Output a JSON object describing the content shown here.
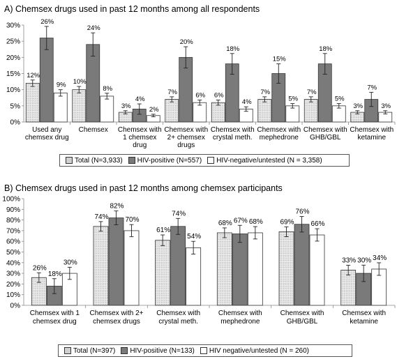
{
  "chart_data": [
    {
      "type": "bar",
      "title": "A) Chemsex drugs used in past 12 months among all respondents",
      "categories": [
        [
          "Used any",
          "chemsex drug"
        ],
        [
          "Chemsex"
        ],
        [
          "Chemsex with",
          "1 chemsex",
          "drug"
        ],
        [
          "Chemsex with",
          "2+ chemsex",
          "drugs"
        ],
        [
          "Chemsex with",
          "crystal meth."
        ],
        [
          "Chemsex with",
          "mephedrone"
        ],
        [
          "Chemsex with",
          "GHB/GBL"
        ],
        [
          "Chemsex with",
          "ketamine"
        ]
      ],
      "ylim": [
        0,
        30
      ],
      "yticks": [
        "0%",
        "5%",
        "10%",
        "15%",
        "20%",
        "25%",
        "30%"
      ],
      "series": [
        {
          "name": "Total (N=3,933)",
          "values": [
            12,
            10,
            3,
            7,
            6,
            7,
            7,
            3
          ],
          "labels": [
            "12%",
            "10%",
            "3%",
            "7%",
            "6%",
            "7%",
            "7%",
            "3%"
          ],
          "errors": [
            1,
            1,
            0.5,
            0.8,
            0.8,
            0.8,
            0.8,
            0.5
          ]
        },
        {
          "name": "HIV-positive (N=557)",
          "values": [
            26,
            24,
            4,
            20,
            18,
            15,
            18,
            7
          ],
          "labels": [
            "26%",
            "24%",
            "4%",
            "20%",
            "18%",
            "15%",
            "18%",
            "7%"
          ],
          "errors": [
            3.6,
            3.6,
            1.6,
            3.3,
            3.2,
            3,
            3.2,
            2.2
          ]
        },
        {
          "name": "HIV-negative/untested (N = 3,358)",
          "values": [
            9,
            8,
            2,
            6,
            4,
            5,
            5,
            3
          ],
          "labels": [
            "9%",
            "8%",
            "2%",
            "6%",
            "4%",
            "5%",
            "5%",
            "3%"
          ],
          "errors": [
            1,
            0.9,
            0.4,
            0.8,
            0.7,
            0.7,
            0.7,
            0.5
          ]
        }
      ],
      "grid": false,
      "legend": "bottom"
    },
    {
      "type": "bar",
      "title": "B) Chemsex drugs used in past 12 months among chemsex participants",
      "categories": [
        [
          "Chemsex with 1",
          "chemsex drug"
        ],
        [
          "Chemsex with 2+",
          "chemsex drugs"
        ],
        [
          "Chemsex with",
          "crystal meth."
        ],
        [
          "Chemsex with",
          "mephedrone"
        ],
        [
          "Chemsex with",
          "GHB/GBL"
        ],
        [
          "Chemsex with",
          "ketamine"
        ]
      ],
      "ylim": [
        0,
        100
      ],
      "yticks": [
        "0%",
        "10%",
        "20%",
        "30%",
        "40%",
        "50%",
        "60%",
        "70%",
        "80%",
        "90%",
        "100%"
      ],
      "series": [
        {
          "name": "Total (N=397)",
          "values": [
            26,
            74,
            61,
            68,
            69,
            33
          ],
          "labels": [
            "26%",
            "74%",
            "61%",
            "68%",
            "69%",
            "33%"
          ],
          "errors": [
            4.5,
            4.5,
            5,
            4.6,
            4.6,
            4.6
          ]
        },
        {
          "name": "HIV-positive (N=133)",
          "values": [
            18,
            82,
            74,
            67,
            76,
            30
          ],
          "labels": [
            "18%",
            "82%",
            "74%",
            "67%",
            "76%",
            "30%"
          ],
          "errors": [
            7,
            6.5,
            7.5,
            8,
            7.3,
            7.7
          ]
        },
        {
          "name": "HIV negative/untested (N = 260)",
          "values": [
            30,
            70,
            54,
            68,
            66,
            34
          ],
          "labels": [
            "30%",
            "70%",
            "54%",
            "68%",
            "66%",
            "34%"
          ],
          "errors": [
            5.7,
            5.7,
            6,
            5.8,
            5.8,
            5.9
          ]
        }
      ],
      "grid": false,
      "legend": "bottom"
    }
  ],
  "colors": {
    "total": "#e6e6e6",
    "hiv_positive": "#7a7a7a",
    "hiv_negative": "#ffffff",
    "stroke": "#333333"
  }
}
